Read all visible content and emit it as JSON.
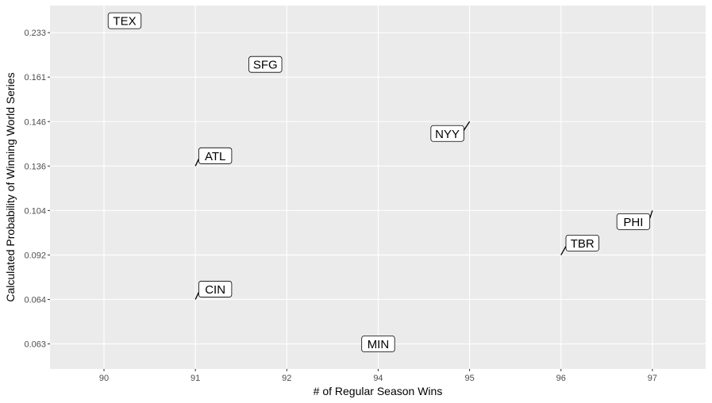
{
  "chart_data": {
    "type": "scatter",
    "xlabel": "# of Regular Season Wins",
    "ylabel": "Calculated Probability of Winning World Series",
    "x_ticks": [
      90,
      91,
      92,
      94,
      95,
      96,
      97
    ],
    "y_ticks": [
      "0.063",
      "0.064",
      "0.092",
      "0.104",
      "0.136",
      "0.146",
      "0.161",
      "0.233"
    ],
    "grid": true,
    "background": "#ebebeb",
    "gridline_color": "#ffffff",
    "points": [
      {
        "team": "TEX",
        "x": 90,
        "y": "0.233"
      },
      {
        "team": "SFG",
        "x": 92,
        "y": "0.161"
      },
      {
        "team": "NYY",
        "x": 95,
        "y": "0.146"
      },
      {
        "team": "ATL",
        "x": 91,
        "y": "0.136"
      },
      {
        "team": "PHI",
        "x": 97,
        "y": "0.104"
      },
      {
        "team": "TBR",
        "x": 96,
        "y": "0.092"
      },
      {
        "team": "CIN",
        "x": 91,
        "y": "0.064"
      },
      {
        "team": "MIN",
        "x": 94,
        "y": "0.063"
      }
    ]
  }
}
